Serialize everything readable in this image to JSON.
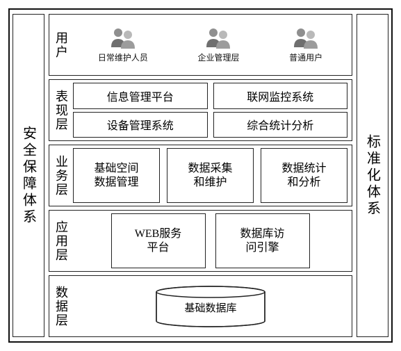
{
  "diagram": {
    "type": "layered-architecture",
    "outer_border_color": "#111111",
    "background_color": "#ffffff",
    "box_border_color": "#222222",
    "font_family": "SimSun",
    "left_pillar": {
      "label": "安全保障体系",
      "fontsize": 20
    },
    "right_pillar": {
      "label": "标准化体系",
      "fontsize": 20
    },
    "layers": [
      {
        "key": "user",
        "label": "用户",
        "users": [
          {
            "caption": "日常维护人员"
          },
          {
            "caption": "企业管理层"
          },
          {
            "caption": "普通用户"
          }
        ],
        "caption_fontsize": 12
      },
      {
        "key": "presentation",
        "label": "表现层",
        "grid": [
          [
            "信息管理平台",
            "联网监控系统"
          ],
          [
            "设备管理系统",
            "综合统计分析"
          ]
        ],
        "cell_fontsize": 16
      },
      {
        "key": "business",
        "label": "业务层",
        "boxes": [
          "基础空间\n数据管理",
          "数据采集\n和维护",
          "数据统计\n和分析"
        ],
        "cell_fontsize": 16
      },
      {
        "key": "application",
        "label": "应用层",
        "boxes": [
          "WEB服务\n平台",
          "数据库访\n问引擎"
        ],
        "cell_fontsize": 16
      },
      {
        "key": "data",
        "label": "数据层",
        "cylinder_label": "基础数据库",
        "cylinder": {
          "width": 160,
          "height": 56,
          "ellipse_ry": 8,
          "stroke": "#222222",
          "fill": "#ffffff",
          "label_fontsize": 15
        }
      }
    ]
  }
}
